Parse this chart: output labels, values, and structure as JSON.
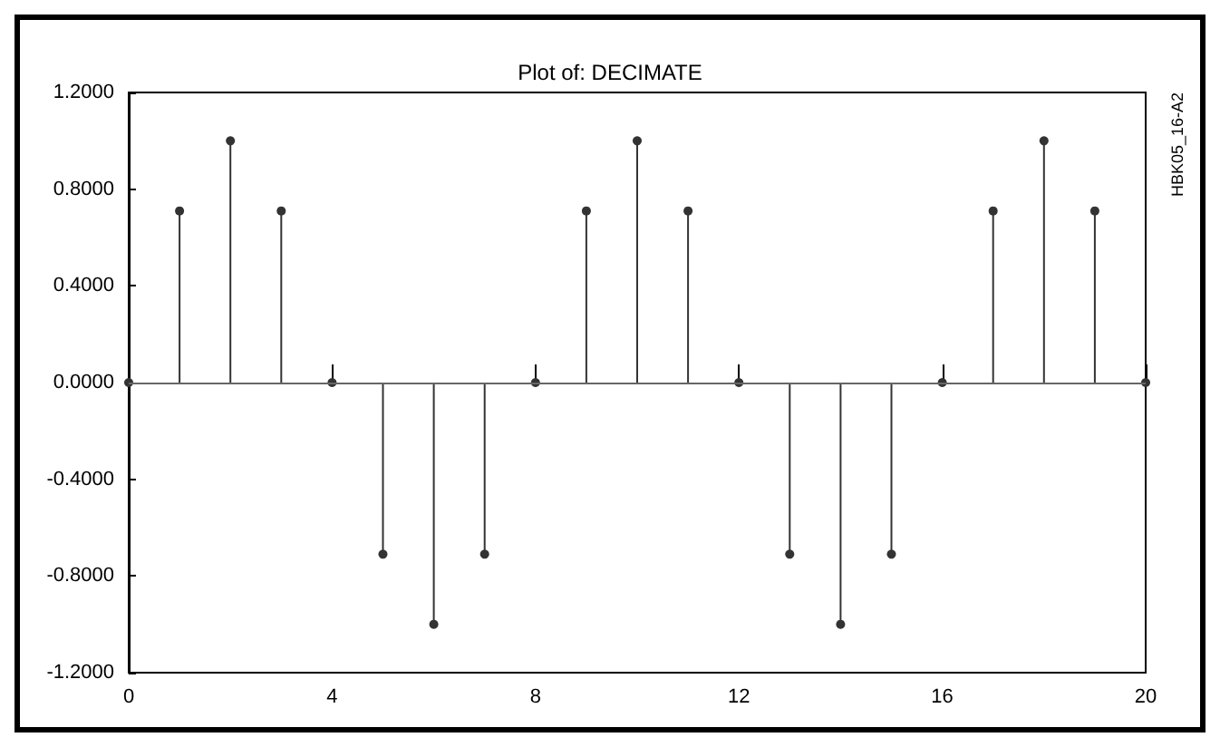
{
  "chart_data": {
    "type": "lollipop",
    "title": "Plot of: DECIMATE",
    "annotations": [
      "HBK05_16-A2"
    ],
    "x": [
      0,
      1,
      2,
      3,
      4,
      5,
      6,
      7,
      8,
      9,
      10,
      11,
      12,
      13,
      14,
      15,
      16,
      17,
      18,
      19,
      20
    ],
    "values": [
      0,
      0.71,
      1,
      0.71,
      0,
      -0.71,
      -1,
      -0.71,
      0,
      0.71,
      1,
      0.71,
      0,
      -0.71,
      -1,
      -0.71,
      0,
      0.71,
      1,
      0.71,
      0
    ],
    "color": "#333333",
    "marker": "circle",
    "grid": false,
    "xlim": [
      0,
      20
    ],
    "xticks": [
      0,
      4,
      8,
      12,
      16,
      20
    ],
    "ylim": [
      -1.2,
      1.2
    ],
    "yticks": [
      {
        "value": -1.2,
        "label": "-1.2000"
      },
      {
        "value": -0.8,
        "label": "-0.8000"
      },
      {
        "value": -0.4,
        "label": "-0.4000"
      },
      {
        "value": 0,
        "label": "0.0000"
      },
      {
        "value": 0.4,
        "label": "0.4000"
      },
      {
        "value": 0.8,
        "label": "0.8000"
      },
      {
        "value": 1.2,
        "label": "1.2000"
      }
    ],
    "ref_lines": [
      {
        "axis": "y",
        "value": 0,
        "color": "#666666"
      }
    ]
  }
}
